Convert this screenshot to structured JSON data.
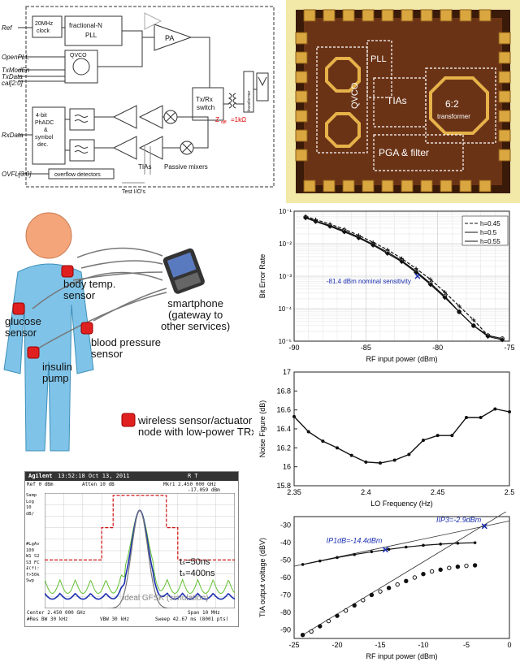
{
  "block_diagram": {
    "inputs": [
      "Ref",
      "OpenPLL",
      "TxModEn",
      "TxData",
      "cal[2:0]",
      "RxData",
      "OVFL[3:0]"
    ],
    "clock_label": "20MHz\nclock",
    "pll_label": "fractional-N\nPLL",
    "qvco_label": "QVCO",
    "pa_label": "PA",
    "switch_label": "Tx/Rx\nswitch",
    "transformer_label": "transformer",
    "impedance_label": "Z_diff = 1kΩ",
    "adc_label": "4-bit\nPhADC\n&\nsymbol\ndec.",
    "overflow_label": "overflow detectors",
    "tia_label": "TIAs",
    "mixer_label": "Passive mixers",
    "test_label": "Test I/O's"
  },
  "die_photo": {
    "labels": [
      "QVCO",
      "PLL",
      "TIAs",
      "6:2 transformer",
      "PGA & filter"
    ],
    "accent": "#f2e9a8"
  },
  "body_network": {
    "labels": {
      "body_temp": "body temp.\nsensor",
      "glucose": "glucose\nsensor",
      "blood_pressure": "blood pressure\nsensor",
      "insulin": "insulin\npump",
      "smartphone": "smartphone\n(gateway to\nother services)",
      "legend": "wireless sensor/actuator\nnode with low-power TRx"
    },
    "node_color": "#e02020",
    "body_color": "#7fc3e8"
  },
  "ber_chart": {
    "chart_data": {
      "type": "line",
      "xlabel": "RF input power (dBm)",
      "ylabel": "Bit Error Rate",
      "xlim": [
        -90,
        -75
      ],
      "ylim_log10": [
        -5,
        -1
      ],
      "yscale": "log",
      "xticks": [
        -90,
        -85,
        -80,
        -75
      ],
      "yticks_labels": [
        "10⁻¹",
        "10⁻²",
        "10⁻³",
        "10⁻⁴",
        "10⁻⁵"
      ],
      "annotation": "-81.4 dBm nominal sensitivity",
      "annotation_point": [
        -81.4,
        0.001
      ],
      "series": [
        {
          "name": "h=0.45",
          "x": [
            -89.2,
            -88.5,
            -87.5,
            -86.5,
            -85.5,
            -84.5,
            -83.5,
            -82.5,
            -81.5,
            -80.5,
            -79.5,
            -78.5,
            -77.5,
            -76.5
          ],
          "y": [
            0.07,
            0.055,
            0.04,
            0.028,
            0.018,
            0.011,
            0.0065,
            0.0035,
            0.0017,
            0.0008,
            0.00032,
            0.00012,
            4.5e-05,
            1.5e-05
          ]
        },
        {
          "name": "h=0.5",
          "x": [
            -89.2,
            -88.5,
            -87.5,
            -86.5,
            -85.5,
            -84.5,
            -83.5,
            -82.5,
            -81.5,
            -80.5,
            -79.5,
            -78.5,
            -77.5,
            -76.5,
            -75.5
          ],
          "y": [
            0.065,
            0.05,
            0.036,
            0.025,
            0.016,
            0.0095,
            0.0055,
            0.003,
            0.0014,
            0.0006,
            0.00024,
            8e-05,
            3e-05,
            1.5e-05,
            1.2e-05
          ]
        },
        {
          "name": "h=0.55",
          "x": [
            -89.2,
            -88.5,
            -87.5,
            -86.5,
            -85.5,
            -84.5,
            -83.5,
            -82.5,
            -81.5,
            -80.5,
            -79.5,
            -78.5,
            -77.5,
            -76.5,
            -75.5
          ],
          "y": [
            0.062,
            0.048,
            0.034,
            0.023,
            0.015,
            0.009,
            0.005,
            0.0028,
            0.0013,
            0.00055,
            0.00022,
            8e-05,
            3e-05,
            1.4e-05,
            1.1e-05
          ]
        }
      ]
    }
  },
  "nf_chart": {
    "chart_data": {
      "type": "line",
      "xlabel": "LO Frequency (Hz)",
      "ylabel": "Noise Figure (dB)",
      "xlim": [
        2.35,
        2.5
      ],
      "ylim": [
        15.8,
        17.0
      ],
      "xticks": [
        "2.35",
        "2.4",
        "2.45",
        "2.5"
      ],
      "yticks": [
        "15.8",
        "16",
        "16.2",
        "16.4",
        "16.6",
        "16.8",
        "17"
      ],
      "x": [
        2.35,
        2.36,
        2.37,
        2.38,
        2.39,
        2.4,
        2.41,
        2.42,
        2.43,
        2.44,
        2.45,
        2.46,
        2.47,
        2.48,
        2.49,
        2.5
      ],
      "y": [
        16.53,
        16.37,
        16.27,
        16.2,
        16.12,
        16.05,
        16.04,
        16.07,
        16.13,
        16.28,
        16.33,
        16.33,
        16.52,
        16.52,
        16.61,
        16.58
      ]
    }
  },
  "spectrum": {
    "header_brand": "Agilent",
    "header_time": "13:52:18  Oct 13, 2011",
    "header_rt": "R  T",
    "ref": "Ref 0 dBm",
    "atten": "Atten 10 dB",
    "mkr1": "Mkr1  2.450 000 GHz",
    "mkr_val": "-17.059 dBm",
    "left_labels": [
      "Samp",
      "Log",
      "10",
      "dB/",
      "",
      "",
      "",
      "",
      "#LgAv",
      "100",
      "W1 S2",
      "S3 FC",
      "£(f):",
      "f>50k",
      "Swp"
    ],
    "center": "Center 2.450 000 GHz",
    "span": "Span 10 MHz",
    "res": "#Res BW 30 kHz",
    "vbw": "VBW 30 kHz",
    "sweep": "Sweep 42.67 ms (8001 pts)",
    "t1": "tₛ=50ns",
    "t2": "tₛ=400ns",
    "ideal": "ideal GFSK (simulation)"
  },
  "linearity_chart": {
    "chart_data": {
      "type": "line",
      "xlabel": "RF input power (dBm)",
      "ylabel": "TIA output voltage (dBV)",
      "xlim": [
        -25,
        0
      ],
      "ylim": [
        -95,
        -25
      ],
      "xticks": [
        "-25",
        "-20",
        "-15",
        "-10",
        "-5",
        "0"
      ],
      "yticks": [
        "-30",
        "-40",
        "-50",
        "-60",
        "-70",
        "-80",
        "-90"
      ],
      "annotations": {
        "iip3": "IIP3=-2.9dBm",
        "ip1db": "IP1dB=-14.4dBm"
      },
      "fundamental": {
        "x": [
          -24,
          -22,
          -20,
          -18,
          -16,
          -14,
          -12,
          -10,
          -8,
          -6,
          -4
        ],
        "y": [
          -52.5,
          -50.5,
          -48.5,
          -46.8,
          -45.2,
          -43.8,
          -42.5,
          -41.5,
          -40.8,
          -40.3,
          -40
        ]
      },
      "im3": {
        "x": [
          -24,
          -23,
          -22,
          -21,
          -20,
          -19,
          -18,
          -17,
          -16,
          -15,
          -14,
          -13,
          -12,
          -11,
          -10,
          -9,
          -8,
          -7,
          -6,
          -5,
          -4
        ],
        "y": [
          -93,
          -91,
          -88,
          -85,
          -82,
          -79,
          -76,
          -73,
          -70,
          -68,
          -66,
          -64,
          -62,
          -60,
          -58,
          -56.5,
          -55.5,
          -54.5,
          -53.8,
          -53.3,
          -53
        ]
      }
    }
  }
}
